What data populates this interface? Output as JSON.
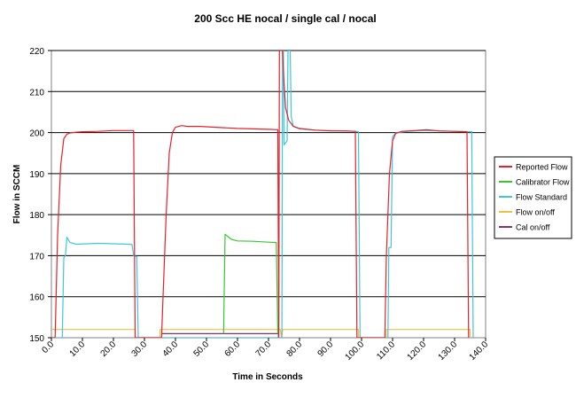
{
  "chart_data": {
    "type": "line",
    "title": "200 Scc HE nocal / single cal / nocal",
    "xlabel": "Time in Seconds",
    "ylabel": "Flow in SCCM",
    "xlim": [
      0,
      140
    ],
    "ylim": [
      150,
      220
    ],
    "x_ticks": [
      0,
      10,
      20,
      30,
      40,
      50,
      60,
      70,
      80,
      90,
      100,
      110,
      120,
      130,
      140
    ],
    "x_tick_labels": [
      "0.0",
      "10.0",
      "20.0",
      "30.0",
      "40.0",
      "50.0",
      "60.0",
      "70.0",
      "80.0",
      "90.0",
      "100.0",
      "110.0",
      "120.0",
      "130.0",
      "140.0"
    ],
    "y_ticks": [
      150,
      160,
      170,
      180,
      190,
      200,
      210,
      220
    ],
    "y_tick_labels": [
      "150",
      "160",
      "170",
      "180",
      "190",
      "200",
      "210",
      "220"
    ],
    "grid": "horizontal",
    "legend_position": "right",
    "series": [
      {
        "name": "Reported Flow",
        "color": "#e8202a",
        "points": [
          [
            0,
            150
          ],
          [
            1.2,
            150
          ],
          [
            2,
            175
          ],
          [
            3,
            192
          ],
          [
            4,
            198.5
          ],
          [
            5,
            199.6
          ],
          [
            6,
            199.9
          ],
          [
            8,
            200.1
          ],
          [
            10,
            200.2
          ],
          [
            15,
            200.3
          ],
          [
            20,
            200.5
          ],
          [
            26.5,
            200.5
          ],
          [
            27,
            150
          ],
          [
            35.5,
            150
          ],
          [
            36,
            160
          ],
          [
            37,
            180
          ],
          [
            38,
            195
          ],
          [
            39,
            200
          ],
          [
            40,
            201.3
          ],
          [
            42,
            201.7
          ],
          [
            44,
            201.5
          ],
          [
            48,
            201.5
          ],
          [
            55,
            201.2
          ],
          [
            60,
            201
          ],
          [
            65,
            200.9
          ],
          [
            70,
            200.8
          ],
          [
            73,
            200.7
          ],
          [
            73.3,
            150
          ],
          [
            73.5,
            220
          ],
          [
            74.5,
            220
          ],
          [
            75,
            212
          ],
          [
            75.5,
            206
          ],
          [
            76.5,
            203
          ],
          [
            78,
            201.5
          ],
          [
            80,
            201
          ],
          [
            85,
            200.6
          ],
          [
            90,
            200.4
          ],
          [
            95,
            200.4
          ],
          [
            98,
            200.3
          ],
          [
            98.5,
            150
          ],
          [
            107.5,
            150
          ],
          [
            108,
            170
          ],
          [
            109,
            190
          ],
          [
            110,
            198
          ],
          [
            111,
            199.8
          ],
          [
            113,
            200.3
          ],
          [
            117,
            200.5
          ],
          [
            121,
            200.7
          ],
          [
            125,
            200.4
          ],
          [
            130,
            200.3
          ],
          [
            134,
            200.2
          ],
          [
            134.5,
            150
          ]
        ]
      },
      {
        "name": "Calibrator Flow",
        "color": "#36c832",
        "points": [
          [
            55.5,
            151
          ],
          [
            56,
            175.2
          ],
          [
            58,
            174
          ],
          [
            60,
            173.6
          ],
          [
            65,
            173.5
          ],
          [
            70,
            173.3
          ],
          [
            72.5,
            173.2
          ],
          [
            73,
            151
          ]
        ]
      },
      {
        "name": "Flow Standard",
        "color": "#3ec6e0",
        "points": [
          [
            0,
            150
          ],
          [
            3.5,
            150
          ],
          [
            4,
            169.5
          ],
          [
            4.5,
            170
          ],
          [
            5,
            174.5
          ],
          [
            6,
            173.2
          ],
          [
            8,
            172.8
          ],
          [
            15,
            173
          ],
          [
            20,
            172.9
          ],
          [
            25,
            172.8
          ],
          [
            26,
            172.7
          ],
          [
            26.5,
            170
          ],
          [
            27.5,
            169.8
          ],
          [
            28,
            150
          ],
          [
            74.3,
            150
          ],
          [
            74.5,
            220
          ],
          [
            74.8,
            220
          ],
          [
            75,
            197
          ],
          [
            76,
            198
          ],
          [
            76.3,
            220
          ],
          [
            77,
            220
          ],
          [
            77.3,
            204
          ],
          [
            78,
            201.5
          ],
          [
            80,
            200.9
          ],
          [
            85,
            200.6
          ],
          [
            90,
            200.5
          ],
          [
            98,
            200.3
          ],
          [
            99,
            200.2
          ],
          [
            99.5,
            150
          ],
          [
            108.5,
            150
          ],
          [
            108.8,
            172
          ],
          [
            109.5,
            172
          ],
          [
            110,
            199
          ],
          [
            111,
            199.9
          ],
          [
            115,
            200.3
          ],
          [
            120,
            200.5
          ],
          [
            125,
            200.4
          ],
          [
            130,
            200.3
          ],
          [
            135.5,
            200.2
          ],
          [
            136,
            150
          ]
        ]
      },
      {
        "name": "Flow on/off",
        "color": "#f0c040",
        "points": [
          [
            0,
            152
          ],
          [
            27,
            152
          ],
          [
            27,
            150
          ],
          [
            35,
            150
          ],
          [
            35,
            152
          ],
          [
            73.8,
            152
          ],
          [
            74.2,
            150
          ],
          [
            74.6,
            152
          ],
          [
            99,
            152
          ],
          [
            99,
            150
          ],
          [
            108,
            150
          ],
          [
            108,
            152
          ],
          [
            135,
            152
          ],
          [
            135,
            150
          ]
        ]
      },
      {
        "name": "Cal on/off",
        "color": "#8a2f6a",
        "points": [
          [
            35.5,
            151
          ],
          [
            73.2,
            151
          ],
          [
            73.2,
            150
          ]
        ]
      }
    ]
  }
}
